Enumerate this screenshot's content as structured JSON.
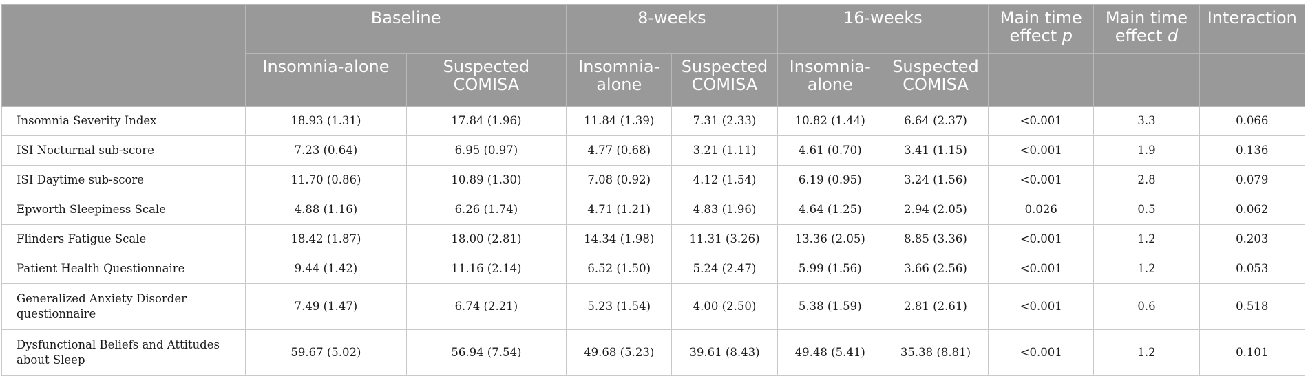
{
  "header": {
    "groups": [
      "Baseline",
      "8-weeks",
      "16-weeks"
    ],
    "main_time_effect_p": {
      "text": "Main time effect ",
      "symbol": "p"
    },
    "main_time_effect_d": {
      "text": "Main time effect ",
      "symbol": "d"
    },
    "interaction": "Interaction",
    "subgroups": [
      "Insomnia-alone",
      "Suspected COMISA",
      "Insomnia-alone",
      "Suspected COMISA",
      "Insomnia-alone",
      "Suspected COMISA"
    ]
  },
  "rows": [
    {
      "measure": "Insomnia Severity Index",
      "values": [
        "18.93 (1.31)",
        "17.84 (1.96)",
        "11.84 (1.39)",
        "7.31 (2.33)",
        "10.82 (1.44)",
        "6.64 (2.37)"
      ],
      "p": "<0.001",
      "d": "3.3",
      "interaction": "0.066"
    },
    {
      "measure": "ISI Nocturnal sub-score",
      "values": [
        "7.23 (0.64)",
        "6.95 (0.97)",
        "4.77 (0.68)",
        "3.21 (1.11)",
        "4.61 (0.70)",
        "3.41 (1.15)"
      ],
      "p": "<0.001",
      "d": "1.9",
      "interaction": "0.136"
    },
    {
      "measure": "ISI Daytime sub-score",
      "values": [
        "11.70 (0.86)",
        "10.89 (1.30)",
        "7.08 (0.92)",
        "4.12 (1.54)",
        "6.19 (0.95)",
        "3.24 (1.56)"
      ],
      "p": "<0.001",
      "d": "2.8",
      "interaction": "0.079"
    },
    {
      "measure": "Epworth Sleepiness Scale",
      "values": [
        "4.88 (1.16)",
        "6.26 (1.74)",
        "4.71 (1.21)",
        "4.83 (1.96)",
        "4.64 (1.25)",
        "2.94 (2.05)"
      ],
      "p": "0.026",
      "d": "0.5",
      "interaction": "0.062"
    },
    {
      "measure": "Flinders Fatigue Scale",
      "values": [
        "18.42 (1.87)",
        "18.00 (2.81)",
        "14.34 (1.98)",
        "11.31 (3.26)",
        "13.36 (2.05)",
        "8.85 (3.36)"
      ],
      "p": "<0.001",
      "d": "1.2",
      "interaction": "0.203"
    },
    {
      "measure": "Patient Health Questionnaire",
      "values": [
        "9.44 (1.42)",
        "11.16 (2.14)",
        "6.52 (1.50)",
        "5.24 (2.47)",
        "5.99 (1.56)",
        "3.66 (2.56)"
      ],
      "p": "<0.001",
      "d": "1.2",
      "interaction": "0.053"
    },
    {
      "measure": "Generalized Anxiety Disorder questionnaire",
      "values": [
        "7.49 (1.47)",
        "6.74 (2.21)",
        "5.23 (1.54)",
        "4.00 (2.50)",
        "5.38 (1.59)",
        "2.81 (2.61)"
      ],
      "p": "<0.001",
      "d": "0.6",
      "interaction": "0.518"
    },
    {
      "measure": "Dysfunctional Beliefs and Attitudes about Sleep",
      "values": [
        "59.67 (5.02)",
        "56.94 (7.54)",
        "49.68 (5.23)",
        "39.61 (8.43)",
        "49.48 (5.41)",
        "35.38 (8.81)"
      ],
      "p": "<0.001",
      "d": "1.2",
      "interaction": "0.101"
    }
  ]
}
